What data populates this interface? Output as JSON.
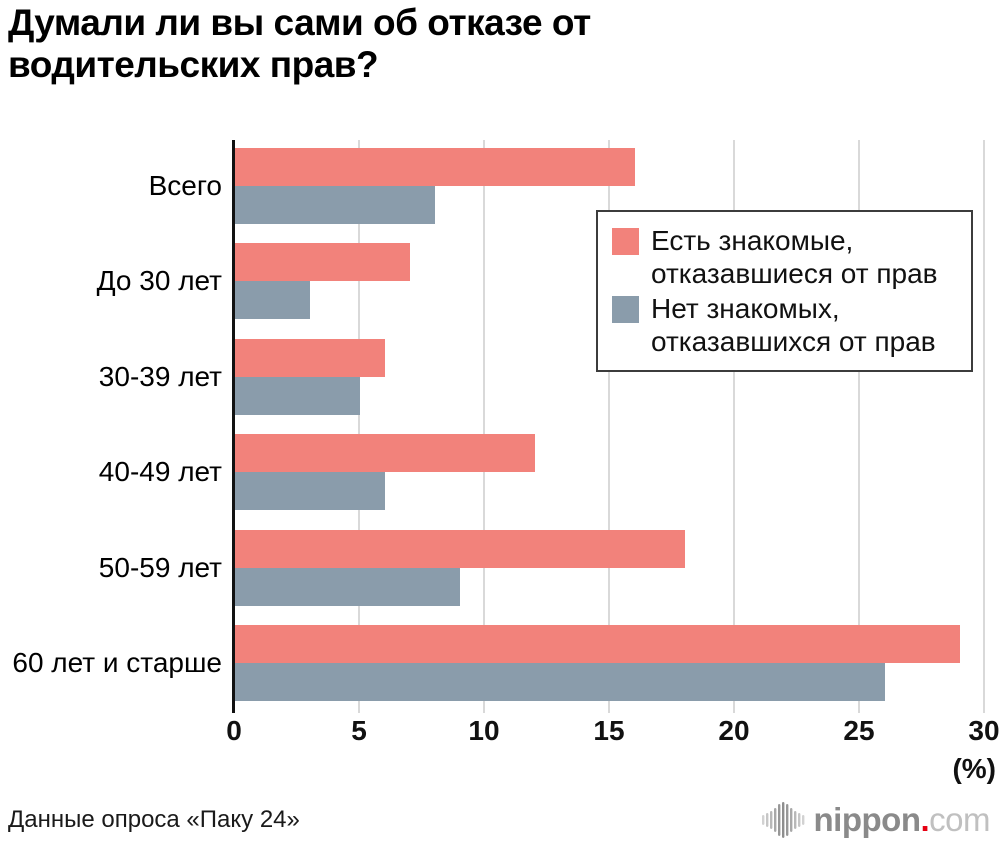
{
  "title": "Думали ли вы сами об отказе от водительских прав?",
  "source": "Данные опроса «Паку 24»",
  "axis_unit_label": "(%)",
  "colors": {
    "series1": "#f2827b",
    "series2": "#8a9cab",
    "gridline": "#d9d9d9",
    "axis": "#111111",
    "legend_border": "#3c3c3c",
    "logo_brand": "#8a8a8a",
    "logo_dot": "#e60012",
    "logo_tld": "#c0c0c0"
  },
  "legend": {
    "items": [
      {
        "label": "Есть знакомые,\nотказавшиеся от прав",
        "color": "#f2827b"
      },
      {
        "label": "Нет знакомых,\nотказавшихся от прав",
        "color": "#8a9cab"
      }
    ]
  },
  "logo": {
    "brand": "nippon",
    "dot": ".",
    "tld": "com"
  },
  "chart_data": {
    "type": "bar",
    "orientation": "horizontal",
    "title": "Думали ли вы сами об отказе от водительских прав?",
    "categories": [
      "Всего",
      "До 30 лет",
      "30-39 лет",
      "40-49 лет",
      "50-59 лет",
      "60 лет и старше"
    ],
    "series": [
      {
        "name": "Есть знакомые, отказавшиеся от прав",
        "color": "#f2827b",
        "values": [
          16,
          7,
          6,
          12,
          18,
          29
        ]
      },
      {
        "name": "Нет знакомых, отказавшихся от прав",
        "color": "#8a9cab",
        "values": [
          8,
          3,
          5,
          6,
          9,
          26
        ]
      }
    ],
    "xlabel": "(%)",
    "xlim": [
      0,
      30
    ],
    "xticks": [
      0,
      5,
      10,
      15,
      20,
      25,
      30
    ],
    "grid": true,
    "legend_position": "upper right"
  }
}
